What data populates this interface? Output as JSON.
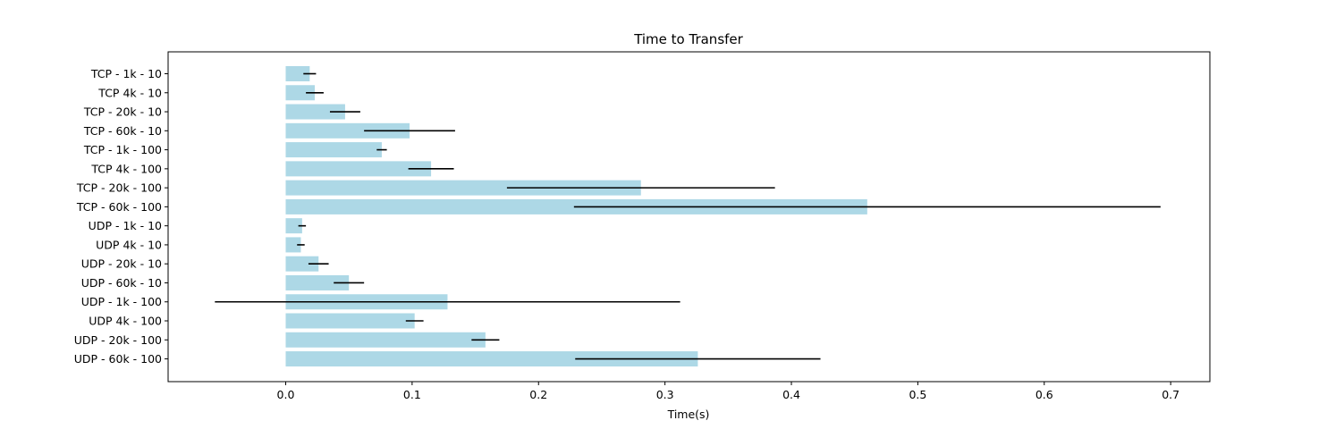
{
  "chart_data": {
    "type": "bar",
    "orientation": "horizontal",
    "title": "Time to Transfer",
    "xlabel": "Time(s)",
    "ylabel": "",
    "xlim": [
      -0.093,
      0.731
    ],
    "xticks": [
      0.0,
      0.1,
      0.2,
      0.3,
      0.4,
      0.5,
      0.6,
      0.7
    ],
    "xtick_labels": [
      "0.0",
      "0.1",
      "0.2",
      "0.3",
      "0.4",
      "0.5",
      "0.6",
      "0.7"
    ],
    "grid": false,
    "categories": [
      "TCP - 1k - 10",
      "TCP 4k - 10",
      "TCP - 20k - 10",
      "TCP - 60k - 10",
      "TCP - 1k - 100",
      "TCP 4k - 100",
      "TCP - 20k - 100",
      "TCP - 60k - 100",
      "UDP - 1k - 10",
      "UDP 4k - 10",
      "UDP - 20k - 10",
      "UDP - 60k - 10",
      "UDP - 1k - 100",
      "UDP 4k - 100",
      "UDP - 20k - 100",
      "UDP - 60k - 100"
    ],
    "values": [
      0.019,
      0.023,
      0.047,
      0.098,
      0.076,
      0.115,
      0.281,
      0.46,
      0.013,
      0.012,
      0.026,
      0.05,
      0.128,
      0.102,
      0.158,
      0.326
    ],
    "errors": [
      0.005,
      0.007,
      0.012,
      0.036,
      0.004,
      0.018,
      0.106,
      0.232,
      0.003,
      0.003,
      0.008,
      0.012,
      0.184,
      0.007,
      0.011,
      0.097
    ],
    "bar_color": "#add8e6",
    "error_color": "#000000"
  }
}
